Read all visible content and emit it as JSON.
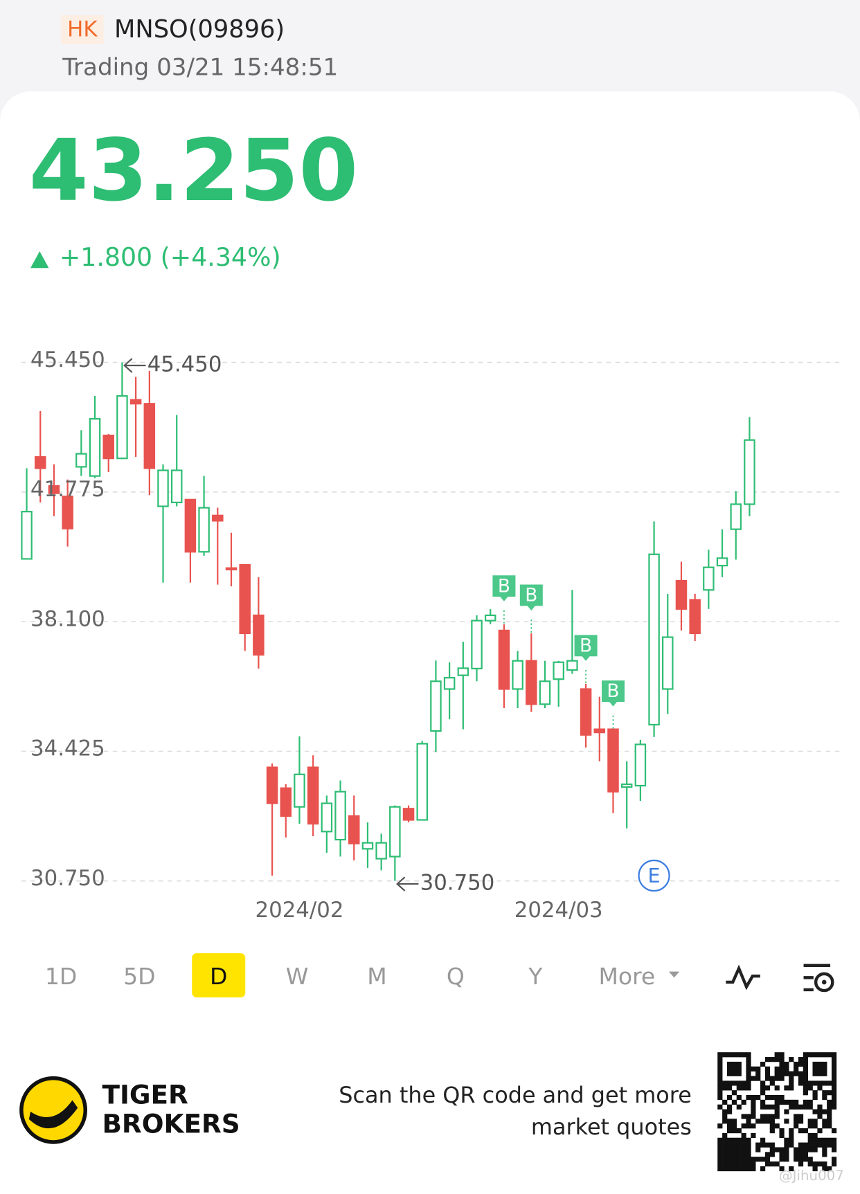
{
  "header": {
    "market": "HK",
    "symbol": "MNSO(09896)",
    "status": "Trading 03/21 15:48:51"
  },
  "quote": {
    "price": "43.250",
    "change": "+1.800 (+4.34%)"
  },
  "chart_data": {
    "type": "candlestick",
    "categories": [
      null,
      null,
      null,
      null,
      null,
      null,
      null,
      null,
      null,
      null,
      null,
      null,
      null,
      null,
      null,
      null,
      null,
      null,
      null,
      null,
      "2024/02",
      null,
      null,
      null,
      null,
      null,
      null,
      null,
      null,
      null,
      null,
      null,
      null,
      null,
      null,
      null,
      null,
      null,
      null,
      "2024/03",
      null,
      null,
      null,
      null,
      null,
      null,
      null,
      null,
      null,
      null,
      null,
      null,
      null,
      null
    ],
    "open": [
      39.88,
      42.77,
      41.95,
      41.65,
      42.49,
      42.23,
      43.38,
      42.73,
      44.39,
      44.28,
      41.37,
      41.48,
      41.56,
      40.08,
      41.11,
      39.62,
      39.71,
      38.28,
      33.97,
      33.38,
      32.85,
      33.97,
      32.15,
      31.92,
      32.59,
      31.66,
      31.38,
      31.44,
      32.8,
      32.48,
      35.0,
      36.19,
      36.58,
      36.77,
      38.13,
      37.85,
      36.19,
      36.99,
      35.76,
      36.47,
      36.73,
      36.19,
      35.05,
      35.05,
      33.41,
      33.45,
      35.18,
      36.19,
      39.26,
      38.72,
      39.0,
      39.69,
      40.72,
      41.43
    ],
    "high": [
      42.45,
      44.07,
      42.56,
      42.13,
      43.53,
      44.5,
      43.42,
      45.45,
      45.04,
      45.21,
      42.56,
      43.96,
      41.56,
      42.23,
      41.33,
      40.62,
      39.71,
      39.36,
      34.08,
      33.49,
      34.85,
      34.31,
      33.17,
      33.6,
      33.17,
      32.41,
      32.09,
      32.89,
      32.89,
      34.72,
      37.0,
      36.95,
      37.53,
      38.28,
      38.46,
      38.03,
      37.27,
      37.77,
      36.99,
      36.99,
      39.0,
      36.34,
      35.97,
      35.05,
      34.14,
      34.75,
      40.94,
      38.89,
      39.8,
      38.89,
      40.14,
      40.72,
      41.8,
      43.9
    ],
    "low": [
      39.88,
      41.48,
      41.09,
      40.23,
      42.23,
      42.17,
      42.34,
      42.71,
      42.77,
      41.69,
      39.21,
      41.37,
      39.21,
      39.97,
      39.15,
      39.1,
      37.27,
      36.77,
      30.9,
      31.98,
      32.37,
      32.02,
      31.55,
      31.44,
      31.33,
      31.12,
      31.05,
      30.75,
      32.41,
      32.46,
      34.4,
      35.33,
      35.05,
      36.41,
      38.03,
      35.65,
      35.65,
      35.54,
      35.65,
      35.69,
      36.62,
      34.53,
      34.14,
      32.67,
      32.24,
      33.02,
      34.83,
      35.48,
      37.85,
      37.55,
      38.46,
      39.36,
      39.86,
      41.09
    ],
    "close": [
      41.22,
      42.45,
      41.74,
      40.74,
      42.86,
      43.85,
      42.73,
      44.5,
      44.28,
      42.45,
      42.39,
      42.39,
      40.08,
      41.33,
      40.96,
      39.58,
      37.77,
      37.16,
      32.95,
      32.59,
      33.77,
      32.37,
      32.95,
      33.28,
      31.81,
      31.83,
      31.83,
      32.85,
      32.48,
      34.64,
      36.41,
      36.51,
      36.78,
      38.13,
      38.28,
      36.19,
      36.99,
      35.76,
      36.41,
      36.95,
      36.99,
      34.89,
      34.96,
      33.28,
      33.49,
      34.62,
      40.01,
      37.66,
      38.46,
      37.77,
      39.64,
      39.9,
      41.43,
      43.25
    ],
    "up_color": "#2dbd73",
    "down_color": "#e8534f",
    "ylim": [
      30.75,
      45.45
    ],
    "yticks": [
      {
        "value": 45.45,
        "label": "45.450"
      },
      {
        "value": 41.775,
        "label": "41.775"
      },
      {
        "value": 38.1,
        "label": "38.100"
      },
      {
        "value": 34.425,
        "label": "34.425"
      },
      {
        "value": 30.75,
        "label": "30.750"
      }
    ],
    "grid": true,
    "max_label": "45.450",
    "min_label": "30.750",
    "markers": [
      {
        "index": 35,
        "label": "B"
      },
      {
        "index": 37,
        "label": "B"
      },
      {
        "index": 41,
        "label": "B"
      },
      {
        "index": 43,
        "label": "B"
      },
      {
        "index": 46,
        "label": "E"
      }
    ]
  },
  "tabs": {
    "items": [
      "1D",
      "5D",
      "D",
      "W",
      "M",
      "Q",
      "Y",
      "More"
    ],
    "selected": 2
  },
  "footer": {
    "brand_line1": "TIGER",
    "brand_line2": "BROKERS",
    "promo_line1": "Scan the QR code and get more",
    "promo_line2": "market quotes",
    "watermark": "@Jihu007"
  }
}
